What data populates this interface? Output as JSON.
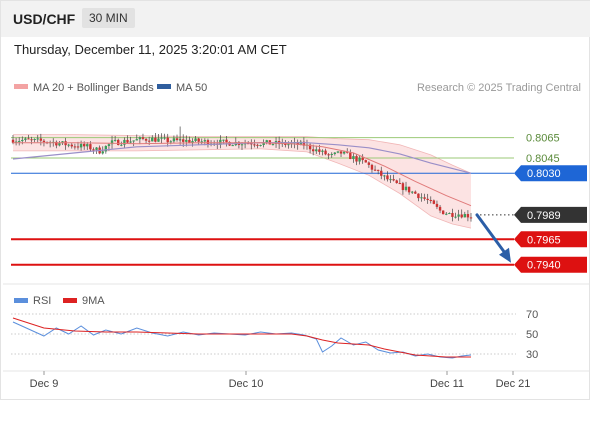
{
  "header": {
    "pair": "USD/CHF",
    "timeframe": "30 MIN",
    "timestamp": "Thursday, December 11, 2025 3:20:01 AM CET"
  },
  "legend": {
    "ma20_bb": "MA 20 + Bollinger Bands",
    "ma50": "MA 50",
    "credit": "Research © 2025 Trading Central",
    "rsi": "RSI",
    "rsi_ma": "9MA"
  },
  "colors": {
    "up": "#3a9c5a",
    "down": "#cc3333",
    "ma20": "#e07a7a",
    "bb_fill": "#fbd9d9",
    "ma50": "#9a8fc8",
    "blue": "#1e66d6",
    "red": "#dd1111",
    "green": "#9bc977",
    "arrow": "#2b5ea7",
    "rsi_line": "#5b8fdc",
    "rsi_ma": "#dd2222"
  },
  "chart_data": [
    {
      "type": "candlestick",
      "title": "USD/CHF",
      "timeframe": "30 MIN",
      "x_tick_labels": [
        "Dec 9",
        "Dec 10",
        "Dec 11",
        "Dec 21"
      ],
      "ylim": [
        0.7922,
        0.8104
      ],
      "levels": [
        {
          "value": 0.8065,
          "label": "0.8065",
          "color": "#9bc977",
          "style": "thin"
        },
        {
          "value": 0.8045,
          "label": "0.8045",
          "color": "#9bc977",
          "style": "thin"
        },
        {
          "value": 0.803,
          "label": "0.8030",
          "color": "#1e66d6",
          "style": "solid"
        },
        {
          "value": 0.7989,
          "label": "0.7989",
          "color": "#333333",
          "style": "dotted"
        },
        {
          "value": 0.7965,
          "label": "0.7965",
          "color": "#dd1111",
          "style": "thick"
        },
        {
          "value": 0.794,
          "label": "0.7940",
          "color": "#dd1111",
          "style": "thick"
        }
      ],
      "last_price": 0.7989,
      "forecast": {
        "from": 0.7989,
        "to": 0.794
      },
      "close_path": [
        [
          0,
          0.8063
        ],
        [
          6,
          0.8062
        ],
        [
          12,
          0.8061
        ],
        [
          18,
          0.8058
        ],
        [
          24,
          0.8056
        ],
        [
          28,
          0.8052
        ],
        [
          32,
          0.806
        ],
        [
          38,
          0.8062
        ],
        [
          44,
          0.8064
        ],
        [
          50,
          0.8062
        ],
        [
          56,
          0.8062
        ],
        [
          62,
          0.8061
        ],
        [
          70,
          0.806
        ],
        [
          78,
          0.806
        ],
        [
          86,
          0.8059
        ],
        [
          94,
          0.8058
        ],
        [
          100,
          0.805
        ],
        [
          103,
          0.8047
        ],
        [
          106,
          0.805
        ],
        [
          110,
          0.8045
        ],
        [
          114,
          0.804
        ],
        [
          118,
          0.803
        ],
        [
          122,
          0.8022
        ],
        [
          126,
          0.8016
        ],
        [
          130,
          0.801
        ],
        [
          134,
          0.8003
        ],
        [
          138,
          0.7993
        ],
        [
          141,
          0.799
        ],
        [
          144,
          0.799
        ],
        [
          148,
          0.7988
        ]
      ],
      "ma20": [
        [
          0,
          0.806
        ],
        [
          20,
          0.806
        ],
        [
          40,
          0.8059
        ],
        [
          60,
          0.806
        ],
        [
          80,
          0.806
        ],
        [
          90,
          0.8059
        ],
        [
          100,
          0.8056
        ],
        [
          110,
          0.805
        ],
        [
          120,
          0.8037
        ],
        [
          130,
          0.8022
        ],
        [
          140,
          0.8008
        ],
        [
          148,
          0.7998
        ]
      ],
      "bb_upper": [
        [
          0,
          0.8068
        ],
        [
          20,
          0.8068
        ],
        [
          40,
          0.8067
        ],
        [
          60,
          0.8066
        ],
        [
          80,
          0.8066
        ],
        [
          95,
          0.8066
        ],
        [
          105,
          0.8064
        ],
        [
          115,
          0.8063
        ],
        [
          125,
          0.8058
        ],
        [
          135,
          0.8048
        ],
        [
          142,
          0.8038
        ],
        [
          148,
          0.803
        ]
      ],
      "bb_lower": [
        [
          0,
          0.8052
        ],
        [
          20,
          0.8052
        ],
        [
          40,
          0.8052
        ],
        [
          60,
          0.8053
        ],
        [
          80,
          0.8054
        ],
        [
          95,
          0.8051
        ],
        [
          105,
          0.804
        ],
        [
          115,
          0.8028
        ],
        [
          125,
          0.801
        ],
        [
          135,
          0.7988
        ],
        [
          142,
          0.798
        ],
        [
          148,
          0.7976
        ]
      ],
      "ma50": [
        [
          0,
          0.8044
        ],
        [
          20,
          0.805
        ],
        [
          40,
          0.8056
        ],
        [
          60,
          0.8058
        ],
        [
          80,
          0.806
        ],
        [
          95,
          0.806
        ],
        [
          105,
          0.8058
        ],
        [
          115,
          0.8055
        ],
        [
          125,
          0.8049
        ],
        [
          135,
          0.804
        ],
        [
          148,
          0.803
        ]
      ]
    },
    {
      "type": "line",
      "title": "RSI",
      "ylim": [
        15,
        80
      ],
      "y_ticks": [
        70,
        50,
        30
      ],
      "series": [
        {
          "name": "RSI",
          "values": [
            [
              0,
              62
            ],
            [
              5,
              55
            ],
            [
              10,
              48
            ],
            [
              14,
              56
            ],
            [
              18,
              50
            ],
            [
              22,
              58
            ],
            [
              26,
              49
            ],
            [
              30,
              54
            ],
            [
              35,
              50
            ],
            [
              40,
              56
            ],
            [
              45,
              51
            ],
            [
              50,
              48
            ],
            [
              55,
              52
            ],
            [
              60,
              49
            ],
            [
              65,
              51
            ],
            [
              70,
              50
            ],
            [
              75,
              49
            ],
            [
              80,
              52
            ],
            [
              85,
              50
            ],
            [
              90,
              51
            ],
            [
              94,
              49
            ],
            [
              98,
              45
            ],
            [
              100,
              32
            ],
            [
              103,
              38
            ],
            [
              106,
              46
            ],
            [
              110,
              39
            ],
            [
              114,
              42
            ],
            [
              118,
              34
            ],
            [
              122,
              31
            ],
            [
              126,
              32
            ],
            [
              130,
              28
            ],
            [
              134,
              30
            ],
            [
              138,
              27
            ],
            [
              142,
              26
            ],
            [
              145,
              28
            ],
            [
              148,
              29
            ]
          ]
        },
        {
          "name": "9MA",
          "values": [
            [
              0,
              66
            ],
            [
              10,
              56
            ],
            [
              20,
              53
            ],
            [
              30,
              52
            ],
            [
              40,
              52
            ],
            [
              50,
              51
            ],
            [
              60,
              50
            ],
            [
              70,
              50
            ],
            [
              80,
              50
            ],
            [
              90,
              50
            ],
            [
              95,
              48
            ],
            [
              100,
              44
            ],
            [
              105,
              41
            ],
            [
              110,
              40
            ],
            [
              115,
              39
            ],
            [
              120,
              35
            ],
            [
              125,
              32
            ],
            [
              130,
              29
            ],
            [
              135,
              28
            ],
            [
              140,
              27
            ],
            [
              148,
              27
            ]
          ]
        }
      ]
    }
  ]
}
